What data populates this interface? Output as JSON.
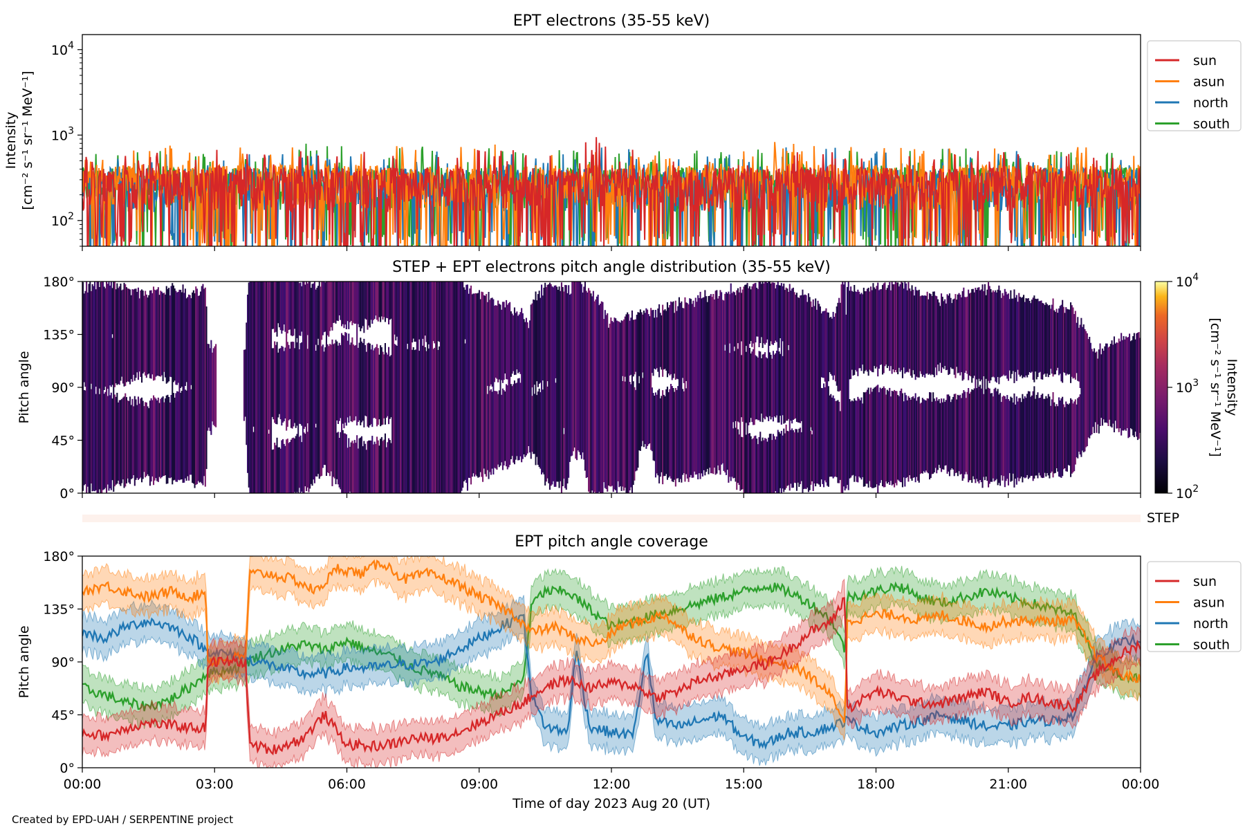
{
  "figure": {
    "credit": "Created by EPD-UAH / SERPENTINE project",
    "xlabel": "Time of day 2023 Aug 20 (UT)"
  },
  "colors": {
    "sun": "#d62728",
    "asun": "#ff7f0e",
    "north": "#1f77b4",
    "south": "#2ca02c",
    "step_band": "#fdf1ec"
  },
  "chart_data": [
    {
      "id": "intensity",
      "type": "line",
      "title": "EPT electrons (35-55 keV)",
      "ylabel_line1": "Intensity",
      "ylabel_line2": "[cm⁻² s⁻¹ sr⁻¹ MeV⁻¹]",
      "yscale": "log",
      "ylim": [
        50,
        15000
      ],
      "yticks": [
        {
          "value": 100,
          "base": "10",
          "exp": "2"
        },
        {
          "value": 1000,
          "base": "10",
          "exp": "3"
        },
        {
          "value": 10000,
          "base": "10",
          "exp": "4"
        }
      ],
      "xlim_hours": [
        0,
        24
      ],
      "legend_position": "top-right (outside)",
      "series": [
        {
          "name": "sun",
          "color": "#d62728",
          "baseline": 280,
          "hours": [
            0,
            2,
            4,
            6,
            8,
            10,
            11.6,
            12,
            14,
            16,
            18,
            20,
            22,
            24
          ],
          "peaks": [
            600,
            700,
            650,
            700,
            680,
            720,
            1080,
            760,
            650,
            640,
            700,
            660,
            620,
            600
          ]
        },
        {
          "name": "asun",
          "color": "#ff7f0e",
          "baseline": 300,
          "hours": [
            0,
            2,
            4,
            6,
            8,
            10,
            12,
            14,
            16,
            18,
            20,
            22,
            24
          ],
          "peaks": [
            640,
            760,
            820,
            950,
            800,
            780,
            780,
            700,
            860,
            800,
            720,
            760,
            650
          ]
        },
        {
          "name": "north",
          "color": "#1f77b4",
          "baseline": 270,
          "hours": [
            0,
            2,
            4,
            6,
            8,
            10,
            11.3,
            12,
            14,
            16,
            18,
            19.9,
            22,
            24
          ],
          "peaks": [
            560,
            640,
            620,
            680,
            660,
            700,
            820,
            700,
            640,
            760,
            700,
            880,
            620,
            560
          ]
        },
        {
          "name": "south",
          "color": "#2ca02c",
          "baseline": 280,
          "hours": [
            0,
            0.3,
            2,
            4,
            6,
            8,
            10,
            12,
            14,
            16,
            18,
            20,
            22,
            24
          ],
          "peaks": [
            700,
            870,
            640,
            700,
            900,
            720,
            720,
            700,
            680,
            700,
            720,
            700,
            660,
            620
          ]
        }
      ]
    },
    {
      "id": "pad",
      "type": "heatmap",
      "title": "STEP + EPT electrons pitch angle distribution (35-55 keV)",
      "ylabel": "Pitch angle",
      "ylim_deg": [
        0,
        180
      ],
      "yticks": [
        "0°",
        "45°",
        "90°",
        "135°",
        "180°"
      ],
      "cmap": "inferno",
      "colorbar": {
        "label_line1": "Intensity",
        "label_line2": "[cm⁻² s⁻¹ sr⁻¹ MeV⁻¹]",
        "scale": "log",
        "range": [
          100,
          10000
        ],
        "ticks": [
          {
            "value": 100,
            "base": "10",
            "exp": "2"
          },
          {
            "value": 1000,
            "base": "10",
            "exp": "3"
          },
          {
            "value": 10000,
            "base": "10",
            "exp": "4"
          }
        ]
      },
      "step_label": "STEP",
      "typical_intensity": 300
    },
    {
      "id": "coverage",
      "type": "area",
      "title": "EPT pitch angle coverage",
      "ylabel": "Pitch angle",
      "ylim_deg": [
        0,
        180
      ],
      "yticks": [
        "0°",
        "45°",
        "90°",
        "135°",
        "180°"
      ],
      "xticks": [
        "00:00",
        "03:00",
        "06:00",
        "09:00",
        "12:00",
        "15:00",
        "18:00",
        "21:00",
        "00:00"
      ],
      "legend_position": "top-right (outside)",
      "band_halfwidth_deg": 13,
      "series": [
        {
          "name": "sun",
          "color": "#d62728",
          "points": [
            [
              0,
              30
            ],
            [
              0.5,
              27
            ],
            [
              1,
              34
            ],
            [
              1.5,
              38
            ],
            [
              2,
              36
            ],
            [
              2.5,
              34
            ],
            [
              2.8,
              34
            ],
            [
              2.85,
              90
            ],
            [
              3.7,
              90
            ],
            [
              3.8,
              20
            ],
            [
              4.3,
              15
            ],
            [
              5,
              25
            ],
            [
              5.5,
              45
            ],
            [
              6,
              20
            ],
            [
              6.5,
              18
            ],
            [
              7,
              20
            ],
            [
              7.5,
              25
            ],
            [
              8,
              25
            ],
            [
              8.5,
              30
            ],
            [
              9,
              38
            ],
            [
              9.5,
              47
            ],
            [
              10,
              55
            ],
            [
              10.3,
              64
            ],
            [
              10.6,
              70
            ],
            [
              11,
              75
            ],
            [
              11.5,
              68
            ],
            [
              12,
              72
            ],
            [
              12.5,
              70
            ],
            [
              13,
              60
            ],
            [
              13.5,
              65
            ],
            [
              14,
              75
            ],
            [
              14.5,
              78
            ],
            [
              15,
              85
            ],
            [
              15.5,
              88
            ],
            [
              16,
              100
            ],
            [
              16.5,
              115
            ],
            [
              17,
              125
            ],
            [
              17.3,
              145
            ],
            [
              17.35,
              50
            ],
            [
              18,
              65
            ],
            [
              18.5,
              60
            ],
            [
              19,
              55
            ],
            [
              19.5,
              55
            ],
            [
              20,
              60
            ],
            [
              20.5,
              65
            ],
            [
              21,
              55
            ],
            [
              21.5,
              60
            ],
            [
              22,
              55
            ],
            [
              22.5,
              52
            ],
            [
              23,
              80
            ],
            [
              23.5,
              95
            ],
            [
              24,
              105
            ]
          ]
        },
        {
          "name": "asun",
          "color": "#ff7f0e",
          "points": [
            [
              0,
              150
            ],
            [
              0.5,
              155
            ],
            [
              1,
              150
            ],
            [
              1.5,
              145
            ],
            [
              2,
              150
            ],
            [
              2.5,
              145
            ],
            [
              2.8,
              150
            ],
            [
              2.85,
              90
            ],
            [
              3.7,
              95
            ],
            [
              3.8,
              165
            ],
            [
              4.2,
              165
            ],
            [
              4.8,
              160
            ],
            [
              5.3,
              150
            ],
            [
              5.8,
              170
            ],
            [
              6.3,
              165
            ],
            [
              6.8,
              175
            ],
            [
              7.3,
              160
            ],
            [
              7.8,
              165
            ],
            [
              8.3,
              160
            ],
            [
              8.8,
              150
            ],
            [
              9.3,
              140
            ],
            [
              9.8,
              130
            ],
            [
              10.2,
              115
            ],
            [
              10.7,
              120
            ],
            [
              11.2,
              110
            ],
            [
              11.7,
              105
            ],
            [
              12.2,
              120
            ],
            [
              12.7,
              125
            ],
            [
              13.2,
              130
            ],
            [
              13.7,
              115
            ],
            [
              14.2,
              105
            ],
            [
              14.7,
              100
            ],
            [
              15.2,
              95
            ],
            [
              15.7,
              90
            ],
            [
              16.2,
              85
            ],
            [
              16.6,
              75
            ],
            [
              17,
              60
            ],
            [
              17.3,
              40
            ],
            [
              17.35,
              125
            ],
            [
              18,
              130
            ],
            [
              18.5,
              130
            ],
            [
              19,
              125
            ],
            [
              19.5,
              130
            ],
            [
              20,
              125
            ],
            [
              20.5,
              120
            ],
            [
              21,
              125
            ],
            [
              21.5,
              125
            ],
            [
              22,
              125
            ],
            [
              22.5,
              125
            ],
            [
              23,
              95
            ],
            [
              23.5,
              80
            ],
            [
              24,
              75
            ]
          ]
        },
        {
          "name": "north",
          "color": "#1f77b4",
          "points": [
            [
              0,
              115
            ],
            [
              0.5,
              110
            ],
            [
              1,
              120
            ],
            [
              1.5,
              125
            ],
            [
              2,
              120
            ],
            [
              2.5,
              110
            ],
            [
              2.8,
              100
            ],
            [
              3.5,
              95
            ],
            [
              4,
              90
            ],
            [
              4.5,
              85
            ],
            [
              5,
              80
            ],
            [
              5.5,
              80
            ],
            [
              6,
              85
            ],
            [
              6.5,
              85
            ],
            [
              7,
              87
            ],
            [
              7.5,
              88
            ],
            [
              8,
              90
            ],
            [
              8.5,
              100
            ],
            [
              9,
              110
            ],
            [
              9.5,
              120
            ],
            [
              10,
              130
            ],
            [
              10.2,
              60
            ],
            [
              10.5,
              35
            ],
            [
              11,
              30
            ],
            [
              11.2,
              100
            ],
            [
              11.5,
              35
            ],
            [
              12,
              30
            ],
            [
              12.5,
              28
            ],
            [
              12.8,
              100
            ],
            [
              13,
              40
            ],
            [
              13.5,
              35
            ],
            [
              14,
              40
            ],
            [
              14.5,
              45
            ],
            [
              15,
              25
            ],
            [
              15.5,
              20
            ],
            [
              16,
              30
            ],
            [
              16.5,
              30
            ],
            [
              17,
              35
            ],
            [
              17.3,
              40
            ],
            [
              17.35,
              40
            ],
            [
              18,
              30
            ],
            [
              18.5,
              35
            ],
            [
              19,
              40
            ],
            [
              19.5,
              45
            ],
            [
              20,
              40
            ],
            [
              20.5,
              35
            ],
            [
              21,
              35
            ],
            [
              21.5,
              40
            ],
            [
              22,
              40
            ],
            [
              22.5,
              45
            ],
            [
              23,
              95
            ],
            [
              23.5,
              105
            ],
            [
              24,
              110
            ]
          ]
        },
        {
          "name": "south",
          "color": "#2ca02c",
          "points": [
            [
              0,
              68
            ],
            [
              0.5,
              62
            ],
            [
              1,
              55
            ],
            [
              1.5,
              52
            ],
            [
              2,
              58
            ],
            [
              2.5,
              70
            ],
            [
              2.8,
              80
            ],
            [
              3.5,
              85
            ],
            [
              4,
              95
            ],
            [
              4.5,
              100
            ],
            [
              5,
              105
            ],
            [
              5.5,
              100
            ],
            [
              6,
              108
            ],
            [
              6.5,
              100
            ],
            [
              7,
              95
            ],
            [
              7.5,
              85
            ],
            [
              8,
              80
            ],
            [
              8.5,
              70
            ],
            [
              9,
              65
            ],
            [
              9.5,
              62
            ],
            [
              10,
              75
            ],
            [
              10.2,
              140
            ],
            [
              10.5,
              150
            ],
            [
              11,
              150
            ],
            [
              11.5,
              135
            ],
            [
              12,
              120
            ],
            [
              12.5,
              125
            ],
            [
              13,
              130
            ],
            [
              13.5,
              135
            ],
            [
              14,
              140
            ],
            [
              14.5,
              145
            ],
            [
              15,
              150
            ],
            [
              15.5,
              155
            ],
            [
              16,
              150
            ],
            [
              16.5,
              140
            ],
            [
              17,
              125
            ],
            [
              17.3,
              100
            ],
            [
              17.35,
              145
            ],
            [
              18,
              150
            ],
            [
              18.5,
              155
            ],
            [
              19,
              145
            ],
            [
              19.5,
              140
            ],
            [
              20,
              145
            ],
            [
              20.5,
              150
            ],
            [
              21,
              145
            ],
            [
              21.5,
              140
            ],
            [
              22,
              135
            ],
            [
              22.5,
              130
            ],
            [
              23,
              90
            ],
            [
              23.5,
              80
            ],
            [
              24,
              75
            ]
          ]
        }
      ]
    }
  ]
}
